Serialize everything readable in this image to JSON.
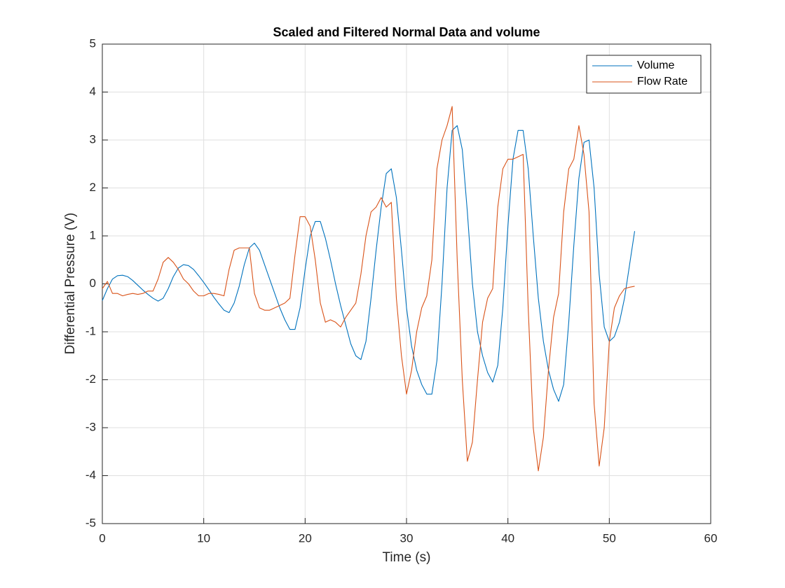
{
  "chart_data": {
    "type": "line",
    "title": "Scaled and Filtered Normal Data and volume",
    "x_label": "Time (s)",
    "y_label": "Differential Pressure (V)",
    "x": [
      0,
      0.5,
      1,
      1.5,
      2,
      2.5,
      3,
      3.5,
      4,
      4.5,
      5,
      5.5,
      6,
      6.5,
      7,
      7.5,
      8,
      8.5,
      9,
      9.5,
      10,
      10.5,
      11,
      11.5,
      12,
      12.5,
      13,
      13.5,
      14,
      14.5,
      15,
      15.5,
      16,
      16.5,
      17,
      17.5,
      18,
      18.5,
      19,
      19.5,
      20,
      20.5,
      21,
      21.5,
      22,
      22.5,
      23,
      23.5,
      24,
      24.5,
      25,
      25.5,
      26,
      26.5,
      27,
      27.5,
      28,
      28.5,
      29,
      29.5,
      30,
      30.5,
      31,
      31.5,
      32,
      32.5,
      33,
      33.5,
      34,
      34.5,
      35,
      35.5,
      36,
      36.5,
      37,
      37.5,
      38,
      38.5,
      39,
      39.5,
      40,
      40.5,
      41,
      41.5,
      42,
      42.5,
      43,
      43.5,
      44,
      44.5,
      45,
      45.5,
      46,
      46.5,
      47,
      47.5,
      48,
      48.5,
      49,
      49.5,
      50,
      50.5,
      51,
      51.5,
      52,
      52.5
    ],
    "series": [
      {
        "name": "Volume",
        "color": "#0072BD",
        "values": [
          -0.35,
          -0.1,
          0.1,
          0.17,
          0.18,
          0.15,
          0.07,
          -0.03,
          -0.13,
          -0.22,
          -0.3,
          -0.36,
          -0.3,
          -0.1,
          0.15,
          0.33,
          0.4,
          0.38,
          0.3,
          0.17,
          0.03,
          -0.12,
          -0.28,
          -0.42,
          -0.55,
          -0.6,
          -0.4,
          -0.05,
          0.4,
          0.75,
          0.85,
          0.7,
          0.4,
          0.1,
          -0.2,
          -0.5,
          -0.75,
          -0.95,
          -0.95,
          -0.5,
          0.3,
          1.0,
          1.3,
          1.3,
          0.95,
          0.5,
          0.0,
          -0.45,
          -0.85,
          -1.25,
          -1.5,
          -1.58,
          -1.2,
          -0.3,
          0.7,
          1.6,
          2.3,
          2.4,
          1.8,
          0.7,
          -0.5,
          -1.3,
          -1.8,
          -2.1,
          -2.3,
          -2.3,
          -1.6,
          0.0,
          2.0,
          3.2,
          3.3,
          2.8,
          1.5,
          0.0,
          -1.0,
          -1.5,
          -1.85,
          -2.05,
          -1.7,
          -0.5,
          1.2,
          2.6,
          3.2,
          3.2,
          2.4,
          1.0,
          -0.3,
          -1.2,
          -1.8,
          -2.2,
          -2.45,
          -2.1,
          -0.8,
          0.8,
          2.2,
          2.95,
          3.0,
          2.0,
          0.2,
          -0.9,
          -1.2,
          -1.1,
          -0.8,
          -0.3,
          0.4,
          1.1
        ]
      },
      {
        "name": "Flow Rate",
        "color": "#D95319",
        "values": [
          -0.1,
          0.05,
          -0.2,
          -0.2,
          -0.25,
          -0.22,
          -0.2,
          -0.22,
          -0.2,
          -0.15,
          -0.15,
          0.1,
          0.45,
          0.55,
          0.45,
          0.3,
          0.1,
          0.0,
          -0.15,
          -0.25,
          -0.25,
          -0.2,
          -0.2,
          -0.22,
          -0.25,
          0.3,
          0.7,
          0.75,
          0.75,
          0.75,
          -0.2,
          -0.5,
          -0.55,
          -0.55,
          -0.5,
          -0.45,
          -0.4,
          -0.3,
          0.6,
          1.4,
          1.4,
          1.2,
          0.5,
          -0.4,
          -0.8,
          -0.75,
          -0.8,
          -0.9,
          -0.7,
          -0.55,
          -0.4,
          0.2,
          1.0,
          1.5,
          1.6,
          1.8,
          1.6,
          1.7,
          -0.3,
          -1.5,
          -2.3,
          -1.8,
          -1.0,
          -0.5,
          -0.25,
          0.5,
          2.4,
          3.0,
          3.3,
          3.7,
          0.5,
          -2.0,
          -3.7,
          -3.3,
          -2.0,
          -0.8,
          -0.3,
          -0.1,
          1.6,
          2.4,
          2.6,
          2.6,
          2.65,
          2.7,
          -0.5,
          -3.0,
          -3.9,
          -3.2,
          -1.8,
          -0.7,
          -0.2,
          1.5,
          2.4,
          2.6,
          3.3,
          2.7,
          1.5,
          -2.5,
          -3.8,
          -3.0,
          -1.2,
          -0.5,
          -0.25,
          -0.1,
          -0.07,
          -0.05
        ]
      }
    ],
    "xlim": [
      0,
      60
    ],
    "xticks": [
      0,
      10,
      20,
      30,
      40,
      50,
      60
    ],
    "ylim": [
      -5,
      5
    ],
    "yticks": [
      -5,
      -4,
      -3,
      -2,
      -1,
      0,
      1,
      2,
      3,
      4,
      5
    ],
    "grid": true,
    "legend": "northeast"
  }
}
